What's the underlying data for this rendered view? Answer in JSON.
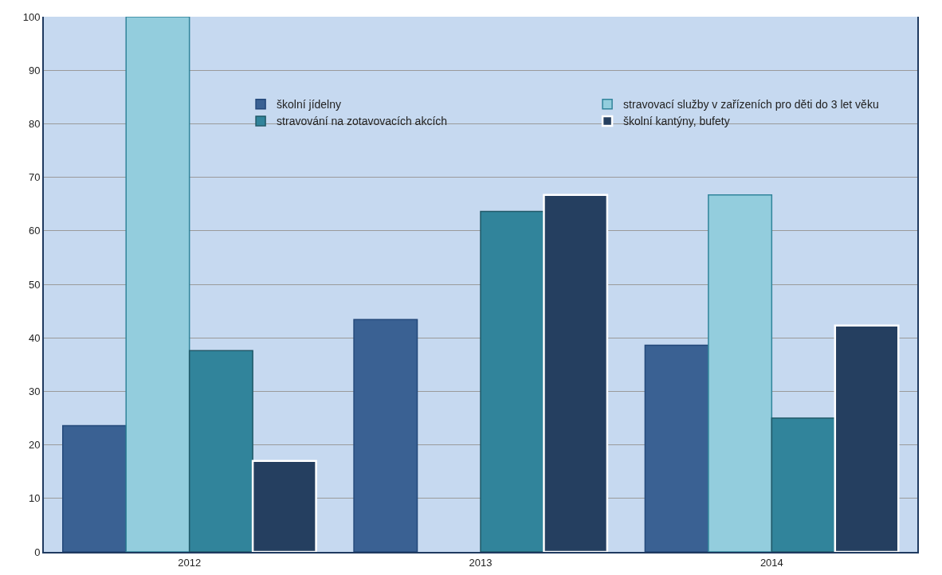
{
  "chart_data": {
    "type": "bar",
    "categories": [
      "2012",
      "2013",
      "2014"
    ],
    "series": [
      {
        "name": "školní jídelny",
        "color": "#3a6193",
        "values": [
          23.6,
          43.4,
          38.6
        ]
      },
      {
        "name": "stravovací služby v zařízeních pro děti do 3 let věku",
        "color": "#93cddd",
        "values": [
          100,
          null,
          66.7
        ]
      },
      {
        "name": "stravování na zotavovacích akcích",
        "color": "#31849b",
        "values": [
          37.6,
          63.6,
          25.0
        ]
      },
      {
        "name": "školní kantýny, bufety",
        "color": "#253f60",
        "values": [
          17.0,
          66.7,
          42.3
        ]
      }
    ],
    "ylim": [
      0,
      100
    ],
    "yticks": [
      0,
      10,
      20,
      30,
      40,
      50,
      60,
      70,
      80,
      90,
      100
    ],
    "grid": "y",
    "legend": "top"
  }
}
